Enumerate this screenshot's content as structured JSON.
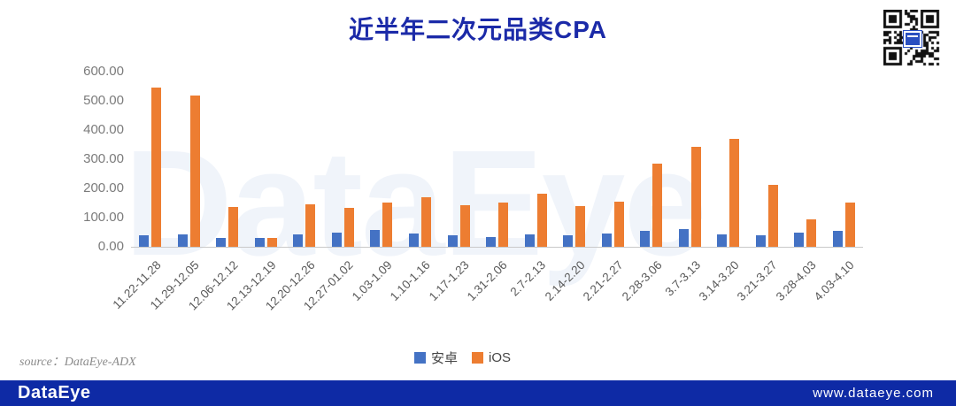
{
  "title": "近半年二次元品类CPA",
  "colors": {
    "title": "#1B2AA8",
    "android_bar": "#4472C4",
    "ios_bar": "#ED7D31",
    "axis_text": "#7b7b7b",
    "footer_bar": "#0E2AA5"
  },
  "chart_data": {
    "type": "bar",
    "title": "近半年二次元品类CPA",
    "categories": [
      "11.22-11.28",
      "11.29-12.05",
      "12.06-12.12",
      "12.13-12.19",
      "12.20-12.26",
      "12.27-01.02",
      "1.03-1.09",
      "1.10-1.16",
      "1.17-1.23",
      "1.31-2.06",
      "2.7-2.13",
      "2.14-2.20",
      "2.21-2.27",
      "2.28-3.06",
      "3.7-3.13",
      "3.14-3.20",
      "3.21-3.27",
      "3.28-4.03",
      "4.03-4.10"
    ],
    "series": [
      {
        "name": "安卓",
        "color": "#4472C4",
        "values": [
          38,
          42,
          30,
          30,
          42,
          48,
          58,
          46,
          38,
          34,
          42,
          40,
          46,
          54,
          61,
          41,
          40,
          47,
          55
        ]
      },
      {
        "name": "iOS",
        "color": "#ED7D31",
        "values": [
          545,
          518,
          135,
          31,
          146,
          134,
          151,
          170,
          141,
          151,
          181,
          140,
          156,
          286,
          341,
          370,
          213,
          95,
          152
        ]
      }
    ],
    "xlabel": "",
    "ylabel": "",
    "ylim": [
      0,
      600
    ],
    "ytick_step": 100,
    "ytick_decimals": 2,
    "grid": false,
    "legend_position": "bottom",
    "watermark": "DataEye"
  },
  "footer": {
    "source": "source：DataEye-ADX",
    "brand": "DataEye",
    "url": "www.dataeye.com"
  }
}
